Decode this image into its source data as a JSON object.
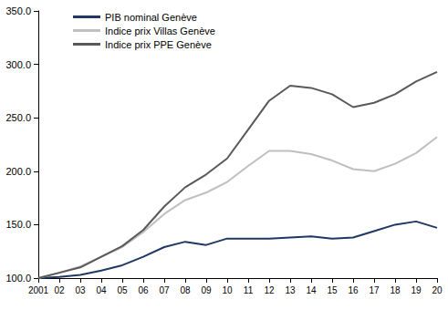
{
  "chart_data": {
    "type": "line",
    "categories": [
      "2001",
      "02",
      "03",
      "04",
      "05",
      "06",
      "07",
      "08",
      "09",
      "10",
      "11",
      "12",
      "13",
      "14",
      "15",
      "16",
      "17",
      "18",
      "19",
      "20"
    ],
    "series": [
      {
        "name": "PIB nominal Genève",
        "color": "#203864",
        "values": [
          100,
          101,
          103,
          107,
          112,
          120,
          129,
          134,
          131,
          137,
          137,
          137,
          138,
          139,
          137,
          138,
          144,
          150,
          153,
          147
        ]
      },
      {
        "name": "Indice prix Villas Genève",
        "color": "#bfbfbf",
        "values": [
          100,
          105,
          111,
          120,
          129,
          143,
          160,
          173,
          180,
          190,
          205,
          219,
          219,
          216,
          210,
          202,
          200,
          207,
          217,
          232
        ]
      },
      {
        "name": "Indice prix PPE Genève",
        "color": "#595959",
        "values": [
          100,
          105,
          110,
          120,
          130,
          145,
          167,
          185,
          197,
          212,
          239,
          266,
          280,
          278,
          272,
          260,
          264,
          272,
          284,
          293
        ]
      }
    ],
    "ylim": [
      100,
      350
    ],
    "yticks": [
      {
        "value": 100,
        "label": "100.0"
      },
      {
        "value": 150,
        "label": "150.0"
      },
      {
        "value": 200,
        "label": "200.0"
      },
      {
        "value": 250,
        "label": "250.0"
      },
      {
        "value": 300,
        "label": "300.0"
      },
      {
        "value": 350,
        "label": "350.0"
      }
    ],
    "grid": false,
    "legend": "upper left"
  }
}
